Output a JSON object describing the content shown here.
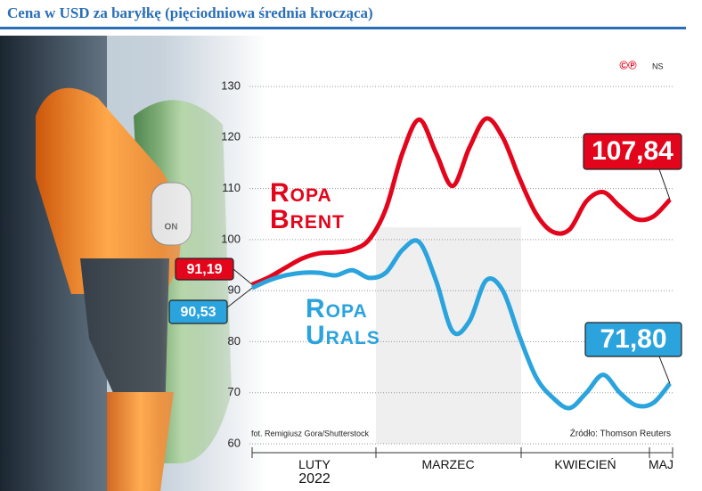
{
  "chart_data": {
    "type": "line",
    "title": "Cena w USD za baryłkę (pięciodniowa średnia krocząca)",
    "logo": "©℗",
    "logo_author": "NS",
    "photo_credit": "fot. Remigiusz Gora/Shutterstock",
    "source": "Źródło: Thomson Reuters",
    "months": [
      "LUTY",
      "MARZEC",
      "KWIECIEŃ",
      "MAJ"
    ],
    "year": "2022",
    "ylim": [
      60,
      130
    ],
    "yticks": [
      60,
      70,
      80,
      90,
      100,
      110,
      120,
      130
    ],
    "grid": true,
    "series": [
      {
        "name": "Ropa Brent",
        "color": "#e3051b",
        "values": [
          91.19,
          92.6,
          94.5,
          96.3,
          97.3,
          97.5,
          98,
          100,
          106,
          117,
          123.5,
          117,
          110.5,
          118,
          123.7,
          120,
          112,
          105,
          101.5,
          102,
          107.5,
          109.3,
          106.5,
          104,
          104.5,
          107.84
        ],
        "value_labels": [
          "91,19",
          null,
          null,
          null,
          null,
          null,
          null,
          null,
          null,
          null,
          null,
          null,
          null,
          null,
          null,
          null,
          null,
          null,
          null,
          null,
          null,
          null,
          null,
          null,
          null,
          "107,84"
        ]
      },
      {
        "name": "Ropa Urals",
        "color": "#2ba3dc",
        "values": [
          90.53,
          92,
          93,
          93.5,
          93.5,
          93,
          94,
          92.5,
          93.5,
          98,
          99.5,
          92,
          82,
          84,
          92,
          90,
          81,
          73,
          69,
          67,
          70,
          73.5,
          70,
          67.5,
          68,
          71.8
        ],
        "value_labels": [
          "90,53",
          null,
          null,
          null,
          null,
          null,
          null,
          null,
          null,
          null,
          null,
          null,
          null,
          null,
          null,
          null,
          null,
          null,
          null,
          null,
          null,
          null,
          null,
          null,
          null,
          "71,80"
        ]
      }
    ]
  }
}
